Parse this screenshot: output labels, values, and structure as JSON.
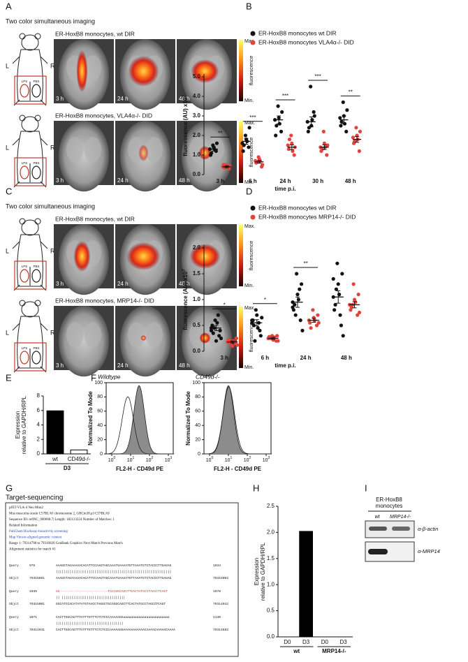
{
  "panel_labels": [
    "A",
    "B",
    "C",
    "D",
    "E",
    "F",
    "G",
    "H",
    "I"
  ],
  "imaging": [
    {
      "subtitle": "Two color simultaneous imaging",
      "rows": [
        {
          "title": "ER-HoxB8 monocytes, wt DIR"
        },
        {
          "title": "ER-HoxB8 monocytes, VLA4α-/- DID"
        }
      ]
    },
    {
      "subtitle": "Two color simultaneous imaging",
      "rows": [
        {
          "title": "ER-HoxB8 monocytes, wt DIR"
        },
        {
          "title": "ER-HoxB8 monocytes, MRP14-/- DID"
        }
      ]
    }
  ],
  "imaging_labels": {
    "left": "L",
    "right": "R",
    "lps": "LPS",
    "pbs": "PBS",
    "times": [
      "3 h",
      "24 h",
      "48 h"
    ],
    "scale_max": "Max.",
    "scale_min": "Min.",
    "scale_label": "fluorescence"
  },
  "flow": {
    "panels": [
      {
        "title": "Wildtype"
      },
      {
        "title": "CD49d-/-"
      }
    ],
    "y_label": "Normalized To Mode",
    "x_label": "FL2-H - CD49d PE",
    "yticks": [
      0,
      20,
      40,
      60,
      80,
      100
    ],
    "xtick_base": "10",
    "xtick_exponents": [
      "0",
      "1",
      "2",
      "3"
    ]
  },
  "sequencing": {
    "title": "Target-sequencing",
    "header": [
      "pJET-VLA-4 Neu Mnn2",
      "Mus musculus strain C57BL/6J chromosome 2, GRCm38.p3 C57BL/6J",
      "Sequence ID: ref|NC_000068.7| Length: 182113224 Number of Matches: 1",
      "Related Information",
      "PubChem BioAssay-bioactivity screening",
      "Map Viewer-aligned genomic context",
      "Range 1: 79314798 to 79316020 GenBank Graphics Next Match Previous Match",
      "Alignment statistics for match #1"
    ],
    "alignment": [
      [
        "Query",
        "975",
        "AAAGGTAGAAAAACACATTCCAAGTAGCAAATGAAAATGTTAAATGTCTACCCTTGAGAG",
        "1034"
      ],
      [
        "",
        "",
        "||||||||||||||||||||||||||||||||||||||||||||||||||||||||||||",
        ""
      ],
      [
        "Sbjct",
        "79315061",
        "AAAGGTAGAAAAACACATTCCAAGTAGCAAATGAAAATGTTAAATGTCTACCCTTGAGAG",
        "79315002"
      ],
      [
        "Query",
        "1035",
        "GG-------------------------TGCAGGCAGCTTCACTATGCCTAGCCTCAGT",
        "1070"
      ],
      [
        "",
        "",
        "||                         |||||||||||||||||||||||||||||||||",
        ""
      ],
      [
        "Sbjct",
        "79315001",
        "GGCATCCACATATATGTAACCTAGGCTGCAGGCAGCTTCACTATGCCTAGCCTCAGT",
        "79314942"
      ],
      [
        "Query",
        "1071",
        "CACTTGGCAGTTTATTTGTTTCTCTCCCAAAAAGGaaaaaaaaaaaaaaaaaaaaaaaa",
        "1130"
      ],
      [
        "",
        "",
        "|||||||||||||||||||||||||||||||||||",
        ""
      ],
      [
        "Sbjct",
        "79314941",
        "CACTTGGCAGTTTATTTGTTTCTCTCCCAAAAAGGAAAAAAAAAAACAAAACAAAAACAAAA",
        "79314882"
      ]
    ]
  },
  "western": {
    "header": [
      "ER-HoxB8",
      "monocytes"
    ],
    "lanes": [
      "wt",
      "MRP14-/-"
    ],
    "probes": [
      "α-β-actin",
      "α-MRP14"
    ]
  },
  "chart_data": [
    {
      "type": "dotplot",
      "categories": [
        "3 h",
        "6 h",
        "24 h",
        "30 h",
        "48 h"
      ],
      "x_label": "time p.i.",
      "y_label": "fluorescence (AU) x10",
      "y_label_exponent": "7",
      "ylim": [
        0,
        5
      ],
      "yticks": [
        {
          "value": 0,
          "label": "0.0"
        },
        {
          "value": 1,
          "label": "1.0"
        },
        {
          "value": 2,
          "label": "2.0"
        },
        {
          "value": 3,
          "label": "3.0"
        },
        {
          "value": 4,
          "label": "4.0"
        },
        {
          "value": 5,
          "label": "5.0"
        }
      ],
      "significance": [
        "**",
        "***",
        "***",
        "***",
        "**"
      ],
      "series": [
        {
          "name": "ER-HoxB8 monocytes wt DIR",
          "color": "#111111",
          "values": [
            1.3,
            1.7,
            2.8,
            2.7,
            2.8
          ],
          "errors": [
            0.1,
            0.15,
            0.2,
            0.25,
            0.2
          ],
          "points": [
            [
              1.3,
              1.5,
              1.2,
              1.0,
              1.4,
              1.6,
              1.1,
              1.3
            ],
            [
              1.6,
              2.0,
              1.4,
              1.2,
              1.8,
              2.4,
              1.5,
              1.7
            ],
            [
              2.8,
              3.5,
              2.2,
              2.0,
              2.9,
              3.2,
              2.5,
              2.6
            ],
            [
              2.7,
              4.5,
              3.2,
              2.2,
              2.5,
              3.0,
              2.4,
              2.8
            ],
            [
              2.9,
              3.7,
              2.2,
              2.5,
              3.0,
              3.3,
              2.7,
              2.6
            ]
          ]
        },
        {
          "name": "ER-HoxB8 monocytes VLA4α-/- DID",
          "color": "#e8403a",
          "values": [
            0.4,
            0.65,
            1.4,
            1.4,
            1.8
          ],
          "errors": [
            0.05,
            0.07,
            0.12,
            0.12,
            0.15
          ],
          "points": [
            [
              0.4,
              0.5,
              0.3,
              0.5,
              0.4,
              0.45,
              0.35,
              0.4
            ],
            [
              0.7,
              0.9,
              0.4,
              0.6,
              0.8,
              0.5,
              0.65,
              0.7
            ],
            [
              1.5,
              2.0,
              1.0,
              1.3,
              1.6,
              1.4,
              1.8,
              1.2
            ],
            [
              1.4,
              2.2,
              1.0,
              1.2,
              1.6,
              1.5,
              1.3,
              1.4
            ],
            [
              1.9,
              2.4,
              1.2,
              1.6,
              2.0,
              2.2,
              1.7,
              1.8
            ]
          ]
        }
      ]
    },
    {
      "type": "dotplot",
      "categories": [
        "3 h",
        "6 h",
        "24 h",
        "48 h"
      ],
      "x_label": "time p.i.",
      "y_label": "fluorescence (AU) x10",
      "y_label_exponent": "7",
      "ylim": [
        0,
        2
      ],
      "yticks": [
        {
          "value": 0,
          "label": "0.0"
        },
        {
          "value": 0.5,
          "label": "0.5"
        },
        {
          "value": 1,
          "label": "1.0"
        },
        {
          "value": 1.5,
          "label": "1.5"
        },
        {
          "value": 2,
          "label": "2.0"
        }
      ],
      "significance": [
        "*",
        "*",
        "**",
        null
      ],
      "series": [
        {
          "name": "ER-HoxB8 monocytes wt DIR",
          "color": "#111111",
          "values": [
            0.45,
            0.55,
            0.95,
            1.05
          ],
          "errors": [
            0.05,
            0.06,
            0.1,
            0.12
          ],
          "points": [
            [
              0.45,
              0.6,
              0.3,
              0.5,
              0.2,
              0.4,
              0.35,
              0.55,
              0.25,
              0.45,
              0.7,
              0.4
            ],
            [
              0.55,
              0.8,
              0.4,
              0.6,
              0.7,
              0.3,
              0.5,
              0.45,
              0.65,
              0.2,
              0.55,
              0.6
            ],
            [
              0.95,
              1.5,
              0.6,
              0.8,
              1.1,
              1.3,
              0.9,
              1.0,
              0.4,
              0.7,
              1.2,
              0.85
            ],
            [
              1.05,
              1.7,
              0.5,
              0.8,
              1.3,
              1.5,
              0.9,
              1.1,
              0.3,
              1.2,
              0.7,
              1.4
            ]
          ]
        },
        {
          "name": "ER-HoxB8 monocytes MRP14-/- DID",
          "color": "#e8403a",
          "values": [
            0.18,
            0.25,
            0.6,
            0.9
          ],
          "errors": [
            0.02,
            0.02,
            0.04,
            0.06
          ],
          "points": [
            [
              0.18,
              0.2,
              0.15,
              0.22,
              0.1,
              0.25,
              0.18,
              0.2,
              0.12,
              0.15
            ],
            [
              0.25,
              0.3,
              0.2,
              0.28,
              0.22,
              0.3,
              0.25,
              0.27,
              0.2
            ],
            [
              0.6,
              0.8,
              0.5,
              0.55,
              0.65,
              0.7,
              0.45,
              0.6,
              0.55
            ],
            [
              0.9,
              1.3,
              0.7,
              0.8,
              1.0,
              1.1,
              0.85,
              0.95,
              0.75,
              0.9
            ]
          ]
        }
      ]
    },
    {
      "type": "bar",
      "categories": [
        "wt",
        "CD49d-/-"
      ],
      "groups": [
        "D3"
      ],
      "values": [
        5.95,
        0.55
      ],
      "colors": [
        "#000000",
        "#ffffff"
      ],
      "y_label": [
        "Expression",
        "relative to GAPDH/RPL"
      ],
      "ylim": [
        0,
        8
      ],
      "yticks": [
        0,
        2,
        4,
        6,
        8
      ]
    },
    {
      "type": "bar",
      "categories": [
        "D0",
        "D3",
        "D0",
        "D3"
      ],
      "groups": [
        "wt",
        "MRP14-/-"
      ],
      "values": [
        0,
        2.02,
        0,
        0
      ],
      "colors": [
        "#000000",
        "#000000",
        "#000000",
        "#000000"
      ],
      "y_label": [
        "Expression",
        "relative to GAPDH/RPL"
      ],
      "ylim": [
        0,
        2.5
      ],
      "yticks": [
        {
          "value": 0,
          "label": "0.0"
        },
        {
          "value": 0.5,
          "label": "0.5"
        },
        {
          "value": 1,
          "label": "1.0"
        },
        {
          "value": 1.5,
          "label": "1.5"
        },
        {
          "value": 2,
          "label": "2.0"
        },
        {
          "value": 2.5,
          "label": "2.5"
        }
      ]
    }
  ]
}
